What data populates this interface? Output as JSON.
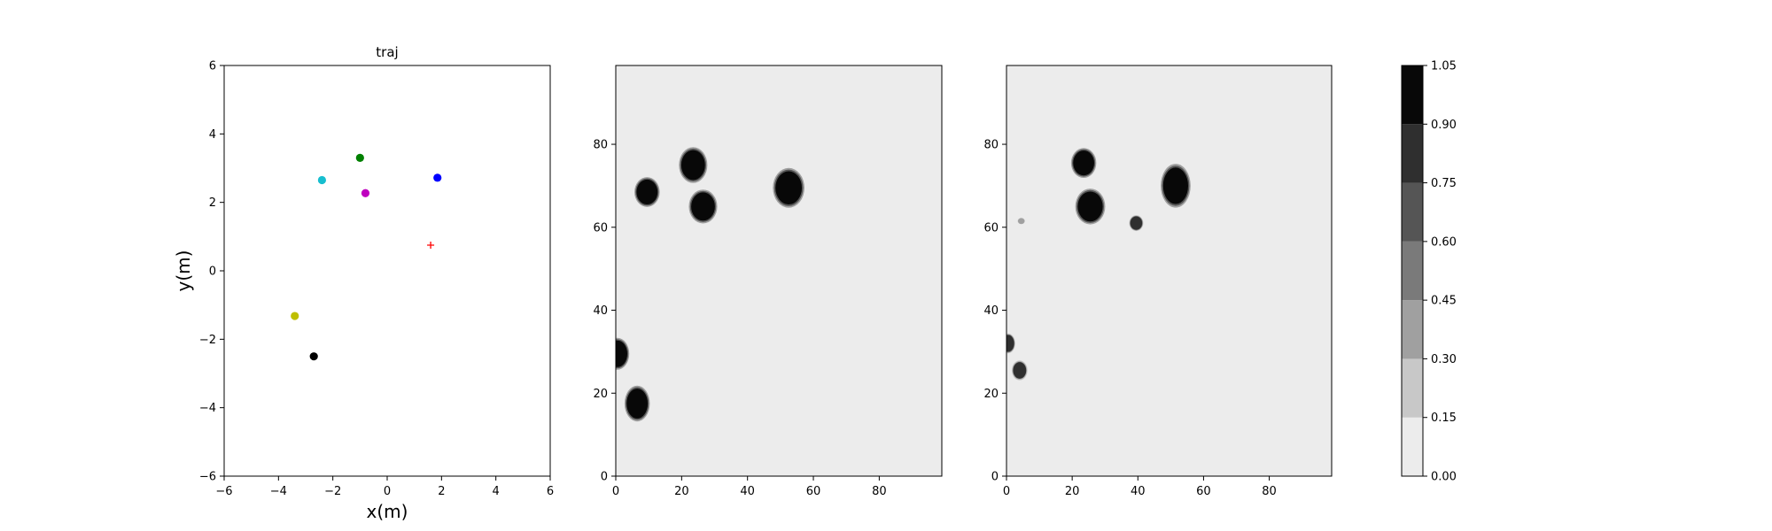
{
  "chart_data": [
    {
      "type": "scatter",
      "title": "traj",
      "xlabel": "x(m)",
      "ylabel": "y(m)",
      "xlim": [
        -6,
        6
      ],
      "ylim": [
        -6,
        6
      ],
      "xticks": [
        -6,
        -4,
        -2,
        0,
        2,
        4,
        6
      ],
      "yticks": [
        -6,
        -4,
        -2,
        0,
        2,
        4,
        6
      ],
      "grid": false,
      "points": [
        {
          "x": -1.0,
          "y": 3.3,
          "color": "#008000",
          "marker": "circle"
        },
        {
          "x": -2.4,
          "y": 2.65,
          "color": "#17becf",
          "marker": "circle"
        },
        {
          "x": 1.85,
          "y": 2.72,
          "color": "#0000ff",
          "marker": "circle"
        },
        {
          "x": -0.8,
          "y": 2.27,
          "color": "#bf00bf",
          "marker": "circle"
        },
        {
          "x": 1.6,
          "y": 0.75,
          "color": "#ff0000",
          "marker": "plus"
        },
        {
          "x": -3.4,
          "y": -1.32,
          "color": "#bfbf00",
          "marker": "circle"
        },
        {
          "x": -2.7,
          "y": -2.5,
          "color": "#000000",
          "marker": "circle"
        }
      ]
    },
    {
      "type": "heatmap",
      "title": "",
      "xlim": [
        0,
        99
      ],
      "ylim": [
        0,
        99
      ],
      "xticks": [
        0,
        20,
        40,
        60,
        80
      ],
      "yticks": [
        0,
        20,
        40,
        60,
        80
      ],
      "background_value": 0.05,
      "blobs": [
        {
          "x": 9.5,
          "y": 68.5,
          "rx": 3.2,
          "ry": 3.0,
          "value": 1.0
        },
        {
          "x": 23.5,
          "y": 75.0,
          "rx": 3.6,
          "ry": 3.6,
          "value": 1.0
        },
        {
          "x": 26.5,
          "y": 65.0,
          "rx": 3.6,
          "ry": 3.4,
          "value": 1.0
        },
        {
          "x": 52.5,
          "y": 69.5,
          "rx": 4.0,
          "ry": 4.0,
          "value": 1.0
        },
        {
          "x": 0.5,
          "y": 29.5,
          "rx": 3.0,
          "ry": 3.2,
          "value": 1.0
        },
        {
          "x": 6.5,
          "y": 17.5,
          "rx": 3.2,
          "ry": 3.6,
          "value": 1.0
        }
      ]
    },
    {
      "type": "heatmap",
      "title": "",
      "xlim": [
        0,
        99
      ],
      "ylim": [
        0,
        99
      ],
      "xticks": [
        0,
        20,
        40,
        60,
        80
      ],
      "yticks": [
        0,
        20,
        40,
        60,
        80
      ],
      "background_value": 0.05,
      "blobs": [
        {
          "x": 23.5,
          "y": 75.5,
          "rx": 3.2,
          "ry": 3.0,
          "value": 1.0
        },
        {
          "x": 25.5,
          "y": 65.0,
          "rx": 3.8,
          "ry": 3.6,
          "value": 1.0
        },
        {
          "x": 51.5,
          "y": 70.0,
          "rx": 3.8,
          "ry": 4.4,
          "value": 1.0
        },
        {
          "x": 39.5,
          "y": 61.0,
          "rx": 1.8,
          "ry": 1.6,
          "value": 0.85
        },
        {
          "x": 4.5,
          "y": 61.5,
          "rx": 1.0,
          "ry": 0.7,
          "value": 0.35
        },
        {
          "x": 0.5,
          "y": 32.0,
          "rx": 1.8,
          "ry": 2.0,
          "value": 0.85
        },
        {
          "x": 4.0,
          "y": 25.5,
          "rx": 2.0,
          "ry": 2.0,
          "value": 0.75
        }
      ]
    },
    {
      "type": "colorbar",
      "levels": [
        0.0,
        0.15,
        0.3,
        0.45,
        0.6,
        0.75,
        0.9,
        1.05
      ],
      "tick_labels": [
        "0.00",
        "0.15",
        "0.30",
        "0.45",
        "0.60",
        "0.75",
        "0.90",
        "1.05"
      ],
      "colors": [
        "#ececec",
        "#c8c8c8",
        "#a0a0a0",
        "#7a7a7a",
        "#555555",
        "#2f2f2f",
        "#080808"
      ]
    }
  ]
}
